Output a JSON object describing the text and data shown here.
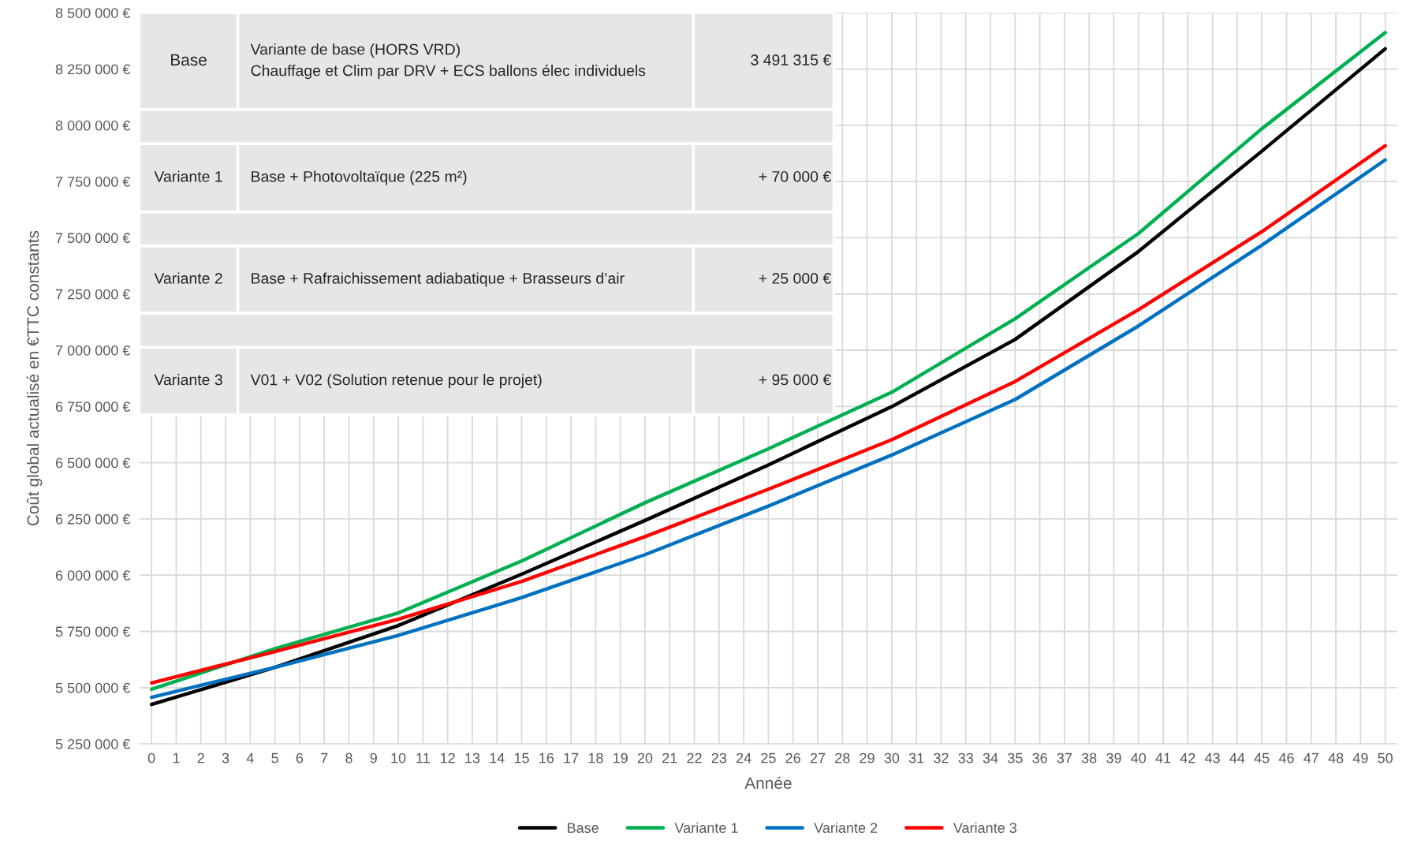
{
  "chart_data": {
    "type": "line",
    "xlabel": "Année",
    "ylabel": "Coût global actualisé en €TTC constants",
    "x": [
      0,
      5,
      10,
      15,
      20,
      25,
      30,
      35,
      40,
      45,
      50
    ],
    "series": [
      {
        "name": "Base",
        "color": "#000000",
        "values": [
          5425000,
          5590000,
          5776000,
          6004000,
          6243000,
          6490000,
          6749000,
          7048000,
          7439000,
          7885000,
          8340000
        ]
      },
      {
        "name": "Variante 1",
        "color": "#00b050",
        "values": [
          5493000,
          5673000,
          5832000,
          6063000,
          6322000,
          6562000,
          6813000,
          7140000,
          7519000,
          7985000,
          8412000
        ]
      },
      {
        "name": "Variante 2",
        "color": "#0070c0",
        "values": [
          5457000,
          5590000,
          5732000,
          5900000,
          6091000,
          6307000,
          6534000,
          6781000,
          7108000,
          7467000,
          7846000
        ]
      },
      {
        "name": "Variante 3",
        "color": "#ff0000",
        "values": [
          5521000,
          5660000,
          5804000,
          5972000,
          6171000,
          6382000,
          6602000,
          6861000,
          7180000,
          7527000,
          7909000
        ]
      }
    ],
    "xlim": [
      -0.5,
      50.5
    ],
    "xticks": [
      0,
      1,
      2,
      3,
      4,
      5,
      6,
      7,
      8,
      9,
      10,
      11,
      12,
      13,
      14,
      15,
      16,
      17,
      18,
      19,
      20,
      21,
      22,
      23,
      24,
      25,
      26,
      27,
      28,
      29,
      30,
      31,
      32,
      33,
      34,
      35,
      36,
      37,
      38,
      39,
      40,
      41,
      42,
      43,
      44,
      45,
      46,
      47,
      48,
      49,
      50
    ],
    "ylim": [
      5250000,
      8500000
    ],
    "yticks": [
      {
        "value": 5250000,
        "label": "5 250 000 €"
      },
      {
        "value": 5500000,
        "label": "5 500 000 €"
      },
      {
        "value": 5750000,
        "label": "5 750 000 €"
      },
      {
        "value": 6000000,
        "label": "6 000 000 €"
      },
      {
        "value": 6250000,
        "label": "6 250 000 €"
      },
      {
        "value": 6500000,
        "label": "6 500 000 €"
      },
      {
        "value": 6750000,
        "label": "6 750 000 €"
      },
      {
        "value": 7000000,
        "label": "7 000 000 €"
      },
      {
        "value": 7250000,
        "label": "7 250 000 €"
      },
      {
        "value": 7500000,
        "label": "7 500 000 €"
      },
      {
        "value": 7750000,
        "label": "7 750 000 €"
      },
      {
        "value": 8000000,
        "label": "8 000 000 €"
      },
      {
        "value": 8250000,
        "label": "8 250 000 €"
      },
      {
        "value": 8500000,
        "label": "8 500 000 €"
      }
    ],
    "grid": true,
    "legend": "bottom",
    "marker": "none",
    "line_style": "solid",
    "annotations": [
      "Base",
      "Variante de base (HORS VRD)\nChauffage et Clim par DRV + ECS ballons élec individuels",
      "3 491 315 €",
      "Variante 1",
      "Base + Photovoltaïque (225 m²)",
      "+ 70 000 €",
      "Variante 2",
      "Base + Rafraichissement adiabatique + Brasseurs d’air",
      "+ 25 000 €",
      "Variante 3",
      "V01 + V02 (Solution retenue pour le projet)",
      "+ 95 000 €"
    ]
  }
}
